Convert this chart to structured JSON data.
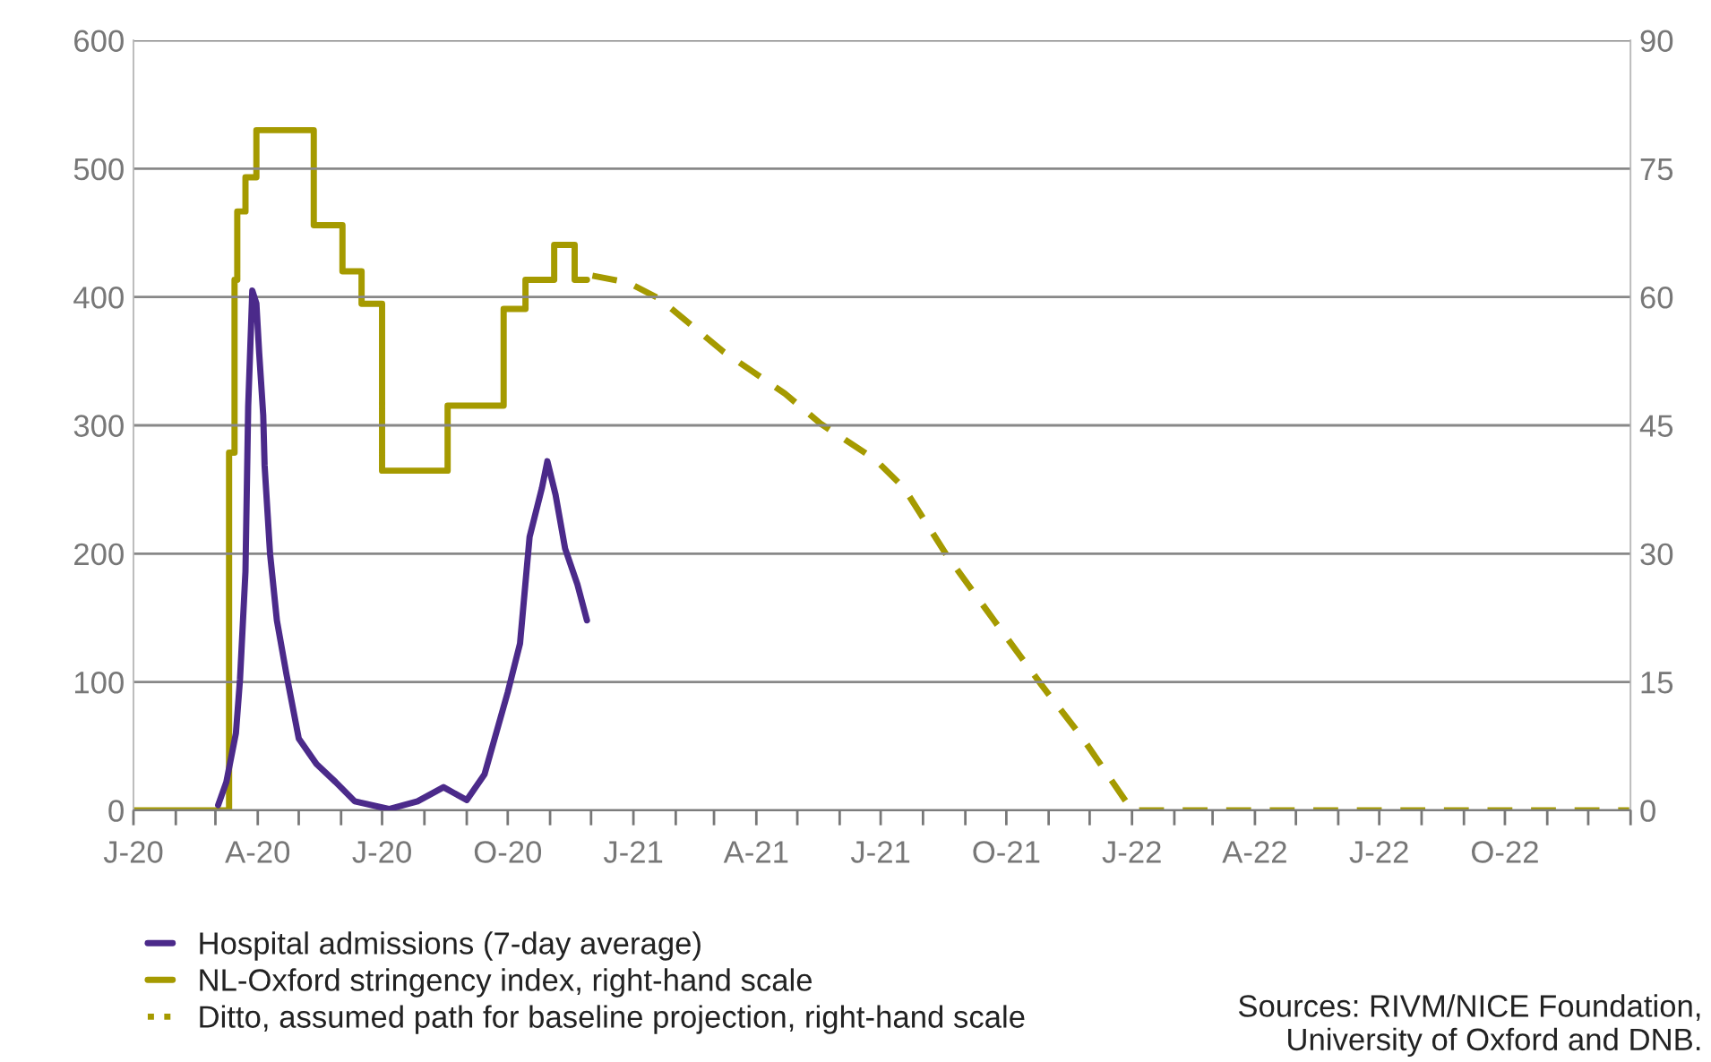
{
  "chart_data": {
    "type": "line",
    "x": [
      "2020-03-03",
      "2020-03-09",
      "2020-03-16",
      "2020-03-19",
      "2020-03-23",
      "2020-03-25",
      "2020-03-28",
      "2020-03-31",
      "2020-04-02",
      "2020-04-05",
      "2020-04-06",
      "2020-04-10",
      "2020-04-15",
      "2020-04-22",
      "2020-05-01",
      "2020-05-14",
      "2020-05-28",
      "2020-06-11",
      "2020-07-06",
      "2020-07-27",
      "2020-08-15",
      "2020-09-01",
      "2020-09-14",
      "2020-10-01",
      "2020-10-10",
      "2020-10-17",
      "2020-10-26",
      "2020-10-30",
      "2020-11-05",
      "2020-11-12",
      "2020-11-21",
      "2020-11-28"
    ],
    "series": [
      {
        "name": "Hospital admissions (7-day average)",
        "color": "#4b2a8a",
        "type": "line",
        "line_style": "solid",
        "values": [
          4,
          22,
          60,
          102,
          186,
          315,
          405,
          395,
          357,
          308,
          269,
          200,
          148,
          106,
          56,
          36,
          22,
          7,
          1,
          7,
          18,
          8,
          28,
          92,
          130,
          213,
          251,
          272,
          246,
          204,
          176,
          148
        ]
      },
      {
        "name": "NL-Oxford stringency index, right-hand scale",
        "color": "#a59a00",
        "type": "step",
        "axis": "y2",
        "line_style": "solid",
        "x": [
          "2020-01-01",
          "2020-03-11",
          "2020-03-15",
          "2020-03-17",
          "2020-03-23",
          "2020-03-31",
          "2020-05-12",
          "2020-06-02",
          "2020-06-16",
          "2020-07-01",
          "2020-08-18",
          "2020-09-28",
          "2020-10-14",
          "2020-11-04",
          "2020-11-19",
          "2020-11-28"
        ],
        "values": [
          0,
          41.8,
          62,
          70,
          74,
          79.5,
          68.4,
          63,
          59.2,
          39.7,
          47.3,
          58.6,
          62,
          66.1,
          62,
          62
        ]
      },
      {
        "name": "Ditto, assumed path for baseline projection, right-hand scale",
        "color": "#a59a00",
        "type": "line",
        "axis": "y2",
        "line_style": "dashed",
        "x": [
          "2020-12-02",
          "2020-12-28",
          "2021-01-20",
          "2021-03-08",
          "2021-04-22",
          "2021-05-18",
          "2021-06-27",
          "2021-07-18",
          "2021-08-18",
          "2021-09-22",
          "2021-10-27",
          "2021-11-26",
          "2022-01-01",
          "2022-12-31"
        ],
        "values": [
          62.5,
          61.7,
          59.8,
          53.6,
          48.7,
          45.2,
          41,
          37.7,
          29.9,
          22.2,
          14.6,
          8.4,
          0,
          0
        ]
      }
    ],
    "xlim": [
      "2020-01-01",
      "2023-01-01"
    ],
    "xticks": [
      {
        "value": "2020-01",
        "label": "J-20"
      },
      {
        "value": "2020-02",
        "label": null
      },
      {
        "value": "2020-03",
        "label": null
      },
      {
        "value": "2020-04",
        "label": "A-20"
      },
      {
        "value": "2020-05",
        "label": null
      },
      {
        "value": "2020-06",
        "label": null
      },
      {
        "value": "2020-07",
        "label": "J-20"
      },
      {
        "value": "2020-08",
        "label": null
      },
      {
        "value": "2020-09",
        "label": null
      },
      {
        "value": "2020-10",
        "label": "O-20"
      },
      {
        "value": "2020-11",
        "label": null
      },
      {
        "value": "2020-12",
        "label": null
      },
      {
        "value": "2021-01",
        "label": "J-21"
      },
      {
        "value": "2021-02",
        "label": null
      },
      {
        "value": "2021-03",
        "label": null
      },
      {
        "value": "2021-04",
        "label": "A-21"
      },
      {
        "value": "2021-05",
        "label": null
      },
      {
        "value": "2021-06",
        "label": null
      },
      {
        "value": "2021-07",
        "label": "J-21"
      },
      {
        "value": "2021-08",
        "label": null
      },
      {
        "value": "2021-09",
        "label": null
      },
      {
        "value": "2021-10",
        "label": "O-21"
      },
      {
        "value": "2021-11",
        "label": null
      },
      {
        "value": "2021-12",
        "label": null
      },
      {
        "value": "2022-01",
        "label": "J-22"
      },
      {
        "value": "2022-02",
        "label": null
      },
      {
        "value": "2022-03",
        "label": null
      },
      {
        "value": "2022-04",
        "label": "A-22"
      },
      {
        "value": "2022-05",
        "label": null
      },
      {
        "value": "2022-06",
        "label": null
      },
      {
        "value": "2022-07",
        "label": "J-22"
      },
      {
        "value": "2022-08",
        "label": null
      },
      {
        "value": "2022-09",
        "label": null
      },
      {
        "value": "2022-10",
        "label": "O-22"
      },
      {
        "value": "2022-11",
        "label": null
      },
      {
        "value": "2022-12",
        "label": null
      },
      {
        "value": "2023-01",
        "label": null
      }
    ],
    "ylim": [
      0,
      600
    ],
    "yticks": [
      0,
      100,
      200,
      300,
      400,
      500,
      600
    ],
    "y2lim": [
      0,
      90
    ],
    "y2ticks": [
      0,
      15,
      30,
      45,
      60,
      75,
      90
    ],
    "grid": "y",
    "legend": "bottom left",
    "annotations": [
      "Sources: RIVM/NICE Foundation,\nUniversity of Oxford and DNB."
    ]
  }
}
